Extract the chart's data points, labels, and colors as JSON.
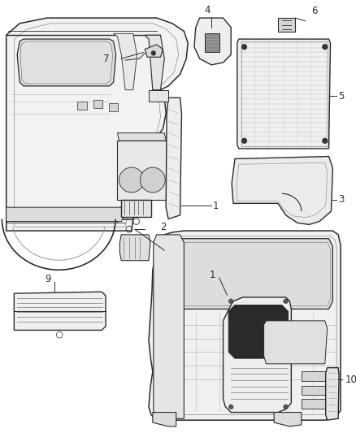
{
  "background_color": "#ffffff",
  "fig_width": 4.38,
  "fig_height": 5.33,
  "dpi": 100,
  "line_color": "#2a2a2a",
  "light_gray": "#d8d8d8",
  "mid_gray": "#b0b0b0",
  "dark_gray": "#444444",
  "label_fontsize": 8.5,
  "lw_main": 1.0,
  "lw_thin": 0.5,
  "lw_thick": 1.4
}
